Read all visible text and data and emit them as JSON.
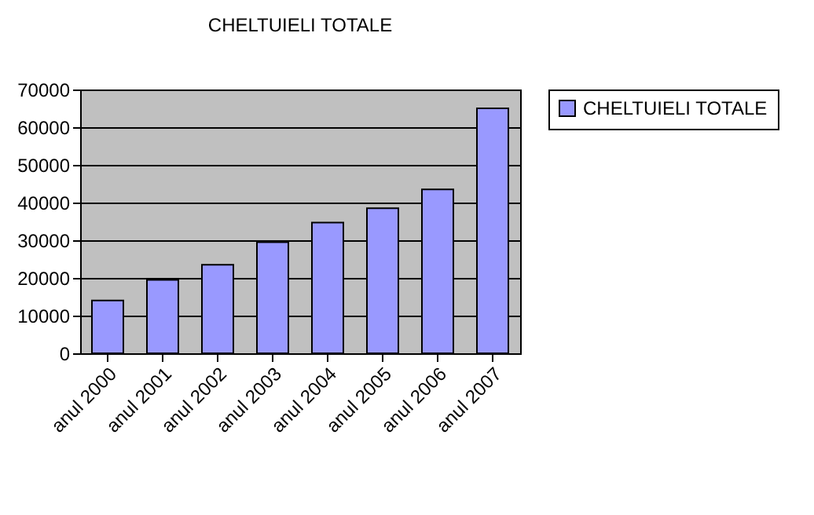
{
  "chart_data": {
    "type": "bar",
    "title": "CHELTUIELI TOTALE",
    "categories": [
      "anul 2000",
      "anul 2001",
      "anul 2002",
      "anul 2003",
      "anul 2004",
      "anul 2005",
      "anul 2006",
      "anul 2007"
    ],
    "series": [
      {
        "name": "CHELTUIELI TOTALE",
        "color": "#9999ff",
        "values": [
          14000,
          19500,
          23500,
          29500,
          34700,
          38500,
          43500,
          65000
        ]
      }
    ],
    "ylim": [
      0,
      70000
    ],
    "yticks": [
      0,
      10000,
      20000,
      30000,
      40000,
      50000,
      60000,
      70000
    ],
    "grid": "y",
    "legend": "right"
  }
}
